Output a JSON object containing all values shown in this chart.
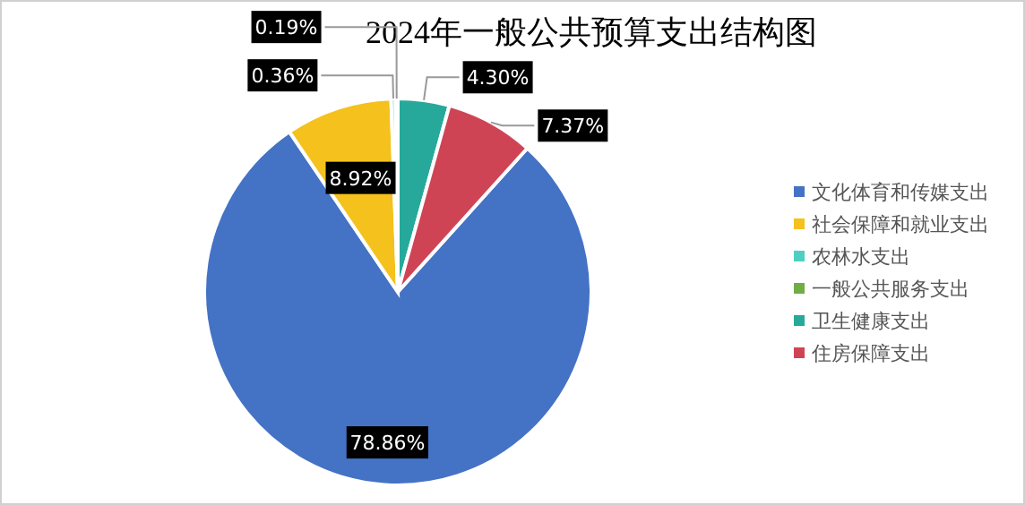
{
  "chart_data": {
    "type": "pie",
    "title": "2024年一般公共预算支出结构图",
    "categories": [
      "文化体育和传媒支出",
      "社会保障和就业支出",
      "农林水支出",
      "一般公共服务支出",
      "卫生健康支出",
      "住房保障支出"
    ],
    "values": [
      78.86,
      8.92,
      0.36,
      0.19,
      4.3,
      7.37
    ],
    "value_labels": [
      "78.86%",
      "8.92%",
      "0.36%",
      "0.19%",
      "4.30%",
      "7.37%"
    ],
    "colors": [
      "#4472c4",
      "#f5c11c",
      "#4fcfc4",
      "#70ad47",
      "#26a99a",
      "#cf4455"
    ],
    "legend": "right"
  }
}
